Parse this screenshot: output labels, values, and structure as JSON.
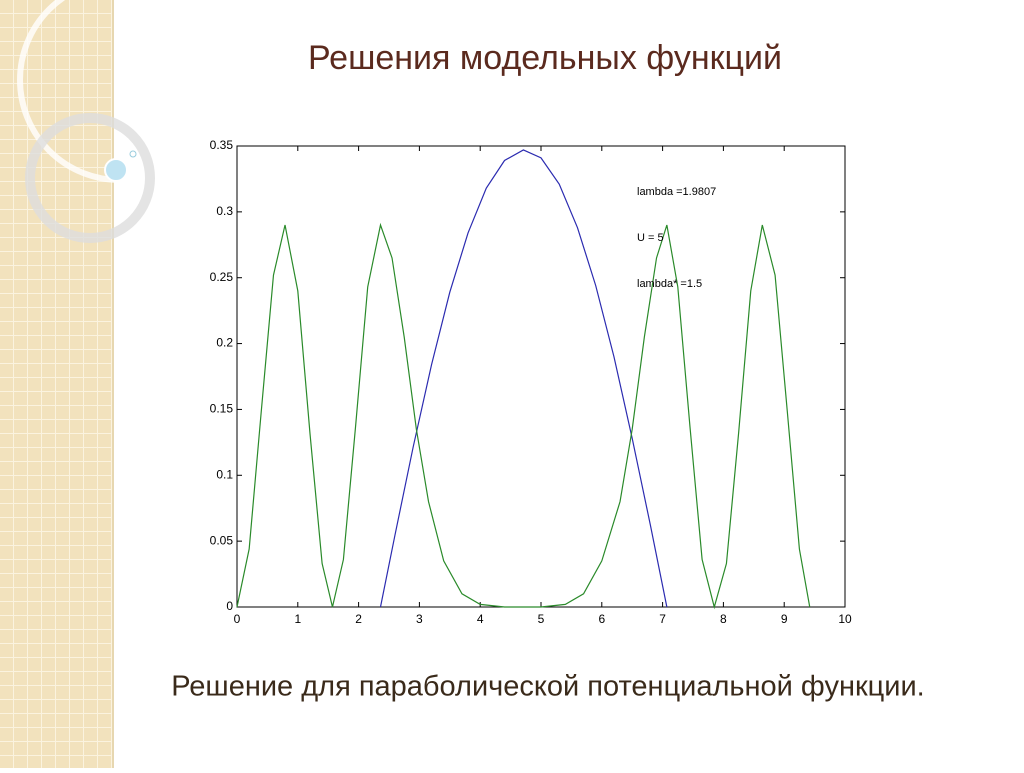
{
  "slide": {
    "title": "Решения модельных функций",
    "caption": "Решение для параболической потенциальной функции."
  },
  "chart_data": {
    "type": "line",
    "xlim": [
      0,
      10
    ],
    "xticks": [
      0,
      1,
      2,
      3,
      4,
      5,
      6,
      7,
      8,
      9,
      10
    ],
    "ylim": [
      0,
      0.35
    ],
    "yticks": [
      0,
      0.05,
      0.1,
      0.15,
      0.2,
      0.25,
      0.3,
      0.35
    ],
    "annotations": [
      "lambda =1.9807",
      "U = 5",
      "lambda* =1.5"
    ],
    "series": [
      {
        "color": "#2b2bb0",
        "x": [
          2.36,
          2.6,
          2.9,
          3.2,
          3.5,
          3.8,
          4.1,
          4.4,
          4.71,
          5.0,
          5.3,
          5.6,
          5.9,
          6.2,
          6.5,
          6.8,
          7.07
        ],
        "values": [
          0,
          0.055,
          0.122,
          0.184,
          0.239,
          0.284,
          0.318,
          0.339,
          0.347,
          0.341,
          0.321,
          0.288,
          0.244,
          0.19,
          0.128,
          0.062,
          0
        ]
      },
      {
        "color": "#2a8a2a",
        "x": [
          0,
          0.2,
          0.4,
          0.6,
          0.79,
          1.0,
          1.2,
          1.4,
          1.57,
          1.75,
          1.95,
          2.15,
          2.36,
          2.55,
          2.75,
          2.95,
          3.15,
          3.4,
          3.7,
          4.0,
          4.4,
          4.71,
          5.0,
          5.4,
          5.7,
          6.0,
          6.3,
          6.5,
          6.7,
          6.9,
          7.07,
          7.25,
          7.45,
          7.65,
          7.85,
          8.05,
          8.25,
          8.45,
          8.64,
          8.85,
          9.05,
          9.25,
          9.42
        ],
        "values": [
          0,
          0.044,
          0.149,
          0.252,
          0.29,
          0.24,
          0.132,
          0.033,
          0,
          0.036,
          0.137,
          0.243,
          0.29,
          0.265,
          0.205,
          0.135,
          0.08,
          0.035,
          0.01,
          0.002,
          0,
          0,
          0,
          0.002,
          0.01,
          0.035,
          0.08,
          0.135,
          0.205,
          0.265,
          0.29,
          0.243,
          0.137,
          0.036,
          0,
          0.033,
          0.132,
          0.24,
          0.29,
          0.252,
          0.149,
          0.044,
          0
        ]
      }
    ]
  }
}
